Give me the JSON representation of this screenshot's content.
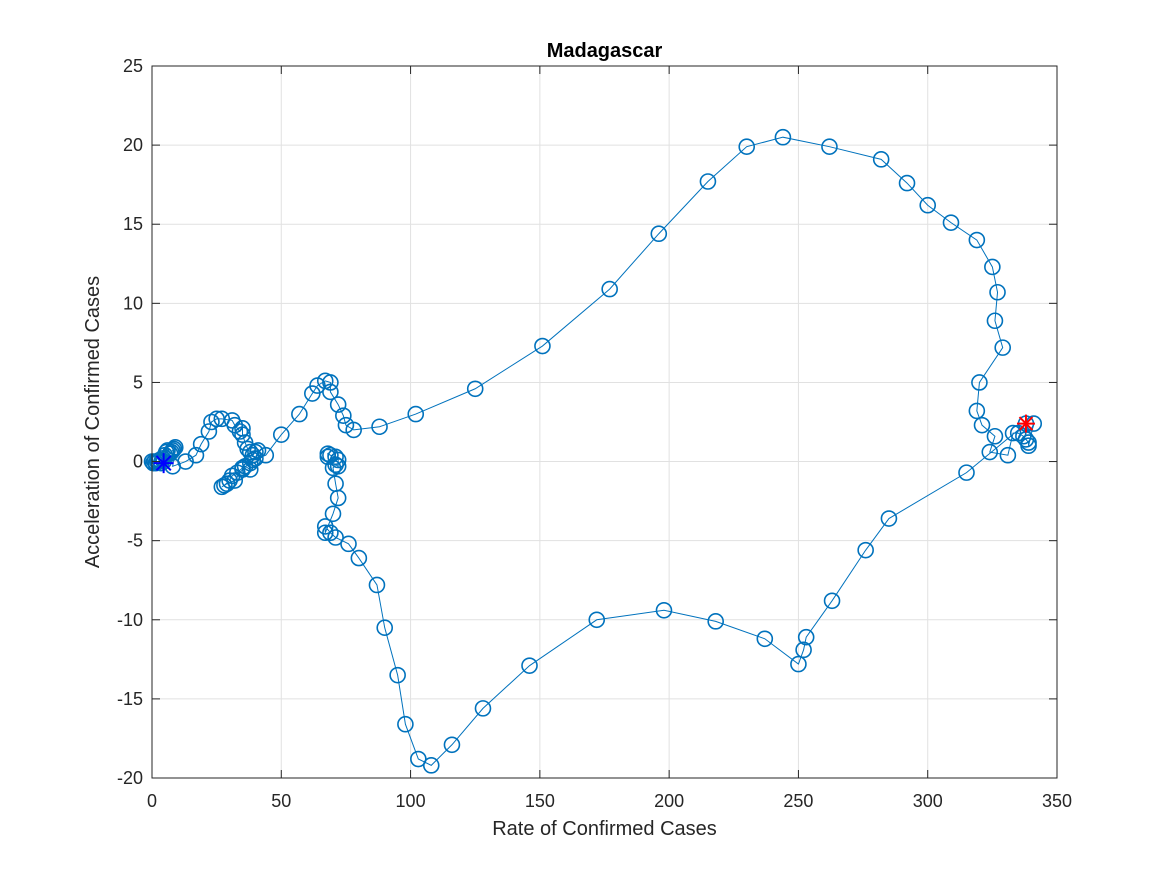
{
  "chart_data": {
    "type": "line",
    "title": "Madagascar",
    "xlabel": "Rate of Confirmed Cases",
    "ylabel": "Acceleration of Confirmed Cases",
    "xlim": [
      0,
      350
    ],
    "ylim": [
      -20,
      25
    ],
    "x_ticks": [
      0,
      50,
      100,
      150,
      200,
      250,
      300,
      350
    ],
    "y_ticks": [
      -20,
      -15,
      -10,
      -5,
      0,
      5,
      10,
      15,
      20,
      25
    ],
    "x_tick_labels": [
      "0",
      "50",
      "100",
      "150",
      "200",
      "250",
      "300",
      "350"
    ],
    "y_tick_labels": [
      "-20",
      "-15",
      "-10",
      "-5",
      "0",
      "5",
      "10",
      "15",
      "20",
      "25"
    ],
    "grid": true,
    "colors": {
      "series": "#0072bd",
      "start_marker": "#0000ff",
      "end_marker": "#ff0000",
      "title": "#000000",
      "axis": "#262626",
      "grid": "#e1e1e1"
    },
    "markers": {
      "series": "circle",
      "start": "asterisk",
      "end": "asterisk"
    },
    "series": [
      {
        "points": [
          [
            0,
            0
          ],
          [
            0.5,
            -0.1
          ],
          [
            1,
            0
          ],
          [
            1.5,
            -0.1
          ],
          [
            2,
            0
          ],
          [
            2.5,
            0
          ],
          [
            3,
            0.1
          ],
          [
            3.5,
            -0.1
          ],
          [
            4,
            0.2
          ],
          [
            4.5,
            0
          ],
          [
            5,
            0.4
          ],
          [
            5.5,
            0.6
          ],
          [
            6,
            0.7
          ],
          [
            7,
            0.5
          ],
          [
            7.5,
            0.6
          ],
          [
            8,
            0.7
          ],
          [
            8.5,
            0.8
          ],
          [
            9,
            0.9
          ],
          [
            8,
            -0.3
          ],
          [
            13,
            0
          ],
          [
            17,
            0.4
          ],
          [
            19,
            1.1
          ],
          [
            22,
            1.9
          ],
          [
            23,
            2.5
          ],
          [
            25,
            2.7
          ],
          [
            27,
            2.7
          ],
          [
            31,
            2.6
          ],
          [
            32,
            2.3
          ],
          [
            34,
            1.9
          ],
          [
            35,
            2.1
          ],
          [
            35,
            1.7
          ],
          [
            36,
            1.2
          ],
          [
            37,
            0.8
          ],
          [
            38,
            0.6
          ],
          [
            39,
            0.4
          ],
          [
            40,
            0.6
          ],
          [
            41,
            0.7
          ],
          [
            40,
            0.2
          ],
          [
            38,
            -0.1
          ],
          [
            38,
            -0.5
          ],
          [
            36,
            -0.3
          ],
          [
            35,
            -0.4
          ],
          [
            33,
            -0.7
          ],
          [
            31,
            -0.9
          ],
          [
            30,
            -1.2
          ],
          [
            28,
            -1.5
          ],
          [
            27,
            -1.6
          ],
          [
            29,
            -1.4
          ],
          [
            32,
            -1.2
          ],
          [
            35,
            -0.5
          ],
          [
            39,
            0.1
          ],
          [
            44,
            0.4
          ],
          [
            50,
            1.7
          ],
          [
            57,
            3
          ],
          [
            62,
            4.3
          ],
          [
            64,
            4.8
          ],
          [
            67,
            5.1
          ],
          [
            69,
            5
          ],
          [
            69,
            4.4
          ],
          [
            72,
            3.6
          ],
          [
            74,
            2.9
          ],
          [
            75,
            2.3
          ],
          [
            78,
            2
          ],
          [
            88,
            2.2
          ],
          [
            102,
            3
          ],
          [
            125,
            4.6
          ],
          [
            151,
            7.3
          ],
          [
            177,
            10.9
          ],
          [
            196,
            14.4
          ],
          [
            215,
            17.7
          ],
          [
            230,
            19.9
          ],
          [
            244,
            20.5
          ],
          [
            262,
            19.9
          ],
          [
            282,
            19.1
          ],
          [
            292,
            17.6
          ],
          [
            300,
            16.2
          ],
          [
            309,
            15.1
          ],
          [
            319,
            14
          ],
          [
            325,
            12.3
          ],
          [
            327,
            10.7
          ],
          [
            326,
            8.9
          ],
          [
            329,
            7.2
          ],
          [
            320,
            5
          ],
          [
            319,
            3.2
          ],
          [
            321,
            2.3
          ],
          [
            326,
            1.6
          ],
          [
            324,
            0.6
          ],
          [
            331,
            0.4
          ],
          [
            333,
            1.8
          ],
          [
            335,
            1.8
          ],
          [
            337,
            1.6
          ],
          [
            338,
            1.4
          ],
          [
            339,
            1.2
          ],
          [
            339,
            1
          ],
          [
            341,
            2.4
          ],
          [
            338,
            2.4
          ],
          [
            315,
            -0.7
          ],
          [
            285,
            -3.6
          ],
          [
            276,
            -5.6
          ],
          [
            263,
            -8.8
          ],
          [
            253,
            -11.1
          ],
          [
            252,
            -11.9
          ],
          [
            250,
            -12.8
          ],
          [
            237,
            -11.2
          ],
          [
            218,
            -10.1
          ],
          [
            198,
            -9.4
          ],
          [
            172,
            -10
          ],
          [
            146,
            -12.9
          ],
          [
            128,
            -15.6
          ],
          [
            116,
            -17.9
          ],
          [
            108,
            -19.2
          ],
          [
            103,
            -18.8
          ],
          [
            98,
            -16.6
          ],
          [
            95,
            -13.5
          ],
          [
            90,
            -10.5
          ],
          [
            87,
            -7.8
          ],
          [
            80,
            -6.1
          ],
          [
            76,
            -5.2
          ],
          [
            71,
            -4.8
          ],
          [
            69,
            -4.5
          ],
          [
            67,
            -4.1
          ],
          [
            67,
            -4.5
          ],
          [
            70,
            -3.3
          ],
          [
            72,
            -2.3
          ],
          [
            71,
            -1.4
          ],
          [
            70,
            -0.4
          ],
          [
            71,
            -0.2
          ],
          [
            72,
            -0.3
          ],
          [
            72,
            0.1
          ],
          [
            71,
            0.3
          ],
          [
            69,
            0.4
          ],
          [
            68,
            0.5
          ],
          [
            68,
            0.3
          ]
        ]
      }
    ],
    "start_point": [
      4.5,
      -0.1
    ],
    "end_point": [
      338,
      2.4
    ]
  }
}
